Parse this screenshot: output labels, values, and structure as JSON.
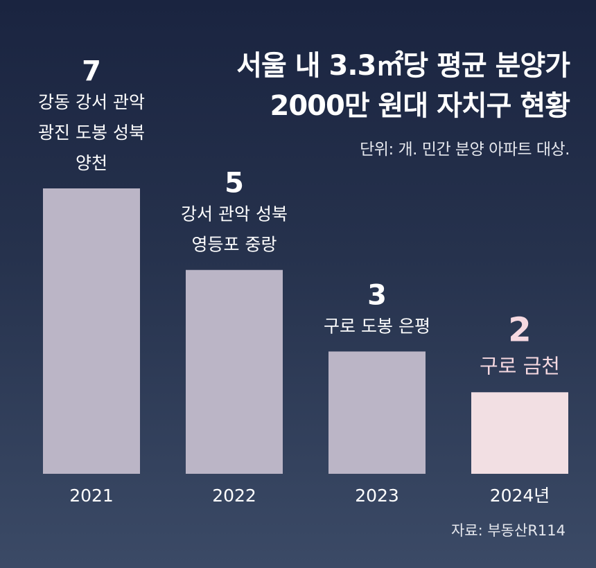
{
  "title_lines": [
    "서울 내 3.3㎡당 평균 분양가",
    "2000만 원대 자치구 현황"
  ],
  "unit_note": "단위: 개. 민간 분양 아파트 대상.",
  "source": "자료: 부동산R114",
  "colors": {
    "bar_default": "#bbb5c6",
    "bar_highlight": "#f2dfe3",
    "label_default": "#ffffff",
    "label_highlight": "#f6d9e1"
  },
  "chart_data": {
    "type": "bar",
    "categories": [
      "2021",
      "2022",
      "2023",
      "2024년"
    ],
    "values": [
      7,
      5,
      3,
      2
    ],
    "district_labels": [
      [
        "강동 강서 관악",
        "광진 도봉 성북",
        "양천"
      ],
      [
        "강서 관악 성북",
        "영등포 중랑"
      ],
      [
        "구로 도봉 은평"
      ],
      [
        "구로 금천"
      ]
    ],
    "highlight_index": 3,
    "ylim": [
      0,
      7
    ]
  }
}
